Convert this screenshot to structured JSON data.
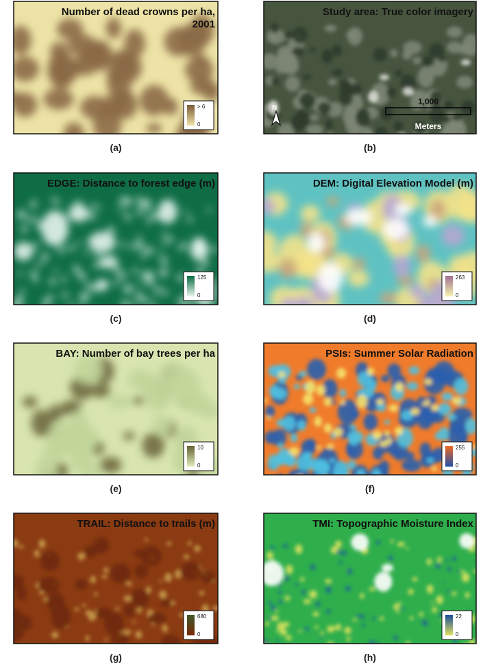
{
  "panels": [
    {
      "title_lines": [
        "Number of dead crowns per ha,",
        "2001"
      ],
      "legend": {
        "max": "> 6",
        "min": 0
      },
      "caption": "(a)"
    },
    {
      "title_lines": [
        "Study area: True color imagery"
      ],
      "scale": {
        "distance": "1,000",
        "unit": "Meters"
      },
      "north": "N",
      "caption": "(b)"
    },
    {
      "title_lines": [
        "EDGE: Distance to forest edge (m)"
      ],
      "legend": {
        "max": 125,
        "min": 0
      },
      "caption": "(c)"
    },
    {
      "title_lines": [
        "DEM: Digital Elevation Model (m)"
      ],
      "legend": {
        "max": 263,
        "min": 0
      },
      "caption": "(d)"
    },
    {
      "title_lines": [
        "BAY: Number of bay trees per ha"
      ],
      "legend": {
        "max": 10,
        "min": 0
      },
      "caption": "(e)"
    },
    {
      "title_lines": [
        "PSIs: Summer Solar Radiation"
      ],
      "legend": {
        "max": 255,
        "min": 0
      },
      "caption": "(f)"
    },
    {
      "title_lines": [
        "TRAIL: Distance to trails (m)"
      ],
      "legend": {
        "max": 680,
        "min": 0
      },
      "caption": "(g)"
    },
    {
      "title_lines": [
        "TMI: Topographic Moisture Index"
      ],
      "legend": {
        "max": 22,
        "min": 0
      },
      "caption": "(h)"
    }
  ]
}
